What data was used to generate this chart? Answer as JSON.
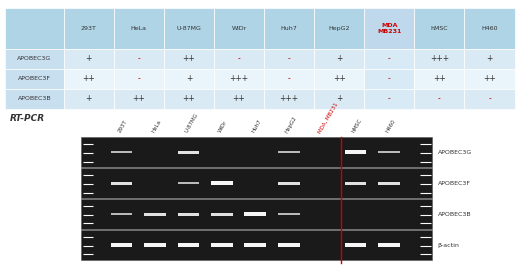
{
  "table_headers": [
    "",
    "293T",
    "HeLa",
    "U-87MG",
    "WiDr",
    "Huh7",
    "HepG2",
    "MDA\nMB231",
    "hMSC",
    "H460"
  ],
  "table_rows": [
    [
      "APOBEC3G",
      "+",
      "-",
      "++",
      "-",
      "-",
      "+",
      "-",
      "+++",
      "+"
    ],
    [
      "APOBEC3F",
      "++",
      "-",
      "+",
      "+++",
      "-",
      "++",
      "-",
      "++",
      "++"
    ],
    [
      "APOBEC3B",
      "+",
      "++",
      "++",
      "++",
      "+++",
      "+",
      "-",
      "-",
      "-"
    ]
  ],
  "mda_col_index": 7,
  "header_bg": "#aed4e6",
  "row_bg_even": "#daeaf4",
  "row_bg_odd": "#eaf4fb",
  "row_label_bg": "#c8dff0",
  "mda_header_bg": "#c0d8ec",
  "header_text_color": "#333333",
  "row_label_color": "#333333",
  "mda_col_text_color": "#cc0000",
  "minus_color": "#cc0000",
  "plus_color": "#333333",
  "gel_labels": [
    "293T",
    "HeLa",
    "U-87MG",
    "WiDr",
    "Huh7",
    "HepG2",
    "MDA, MB231",
    "hMSC",
    "H460"
  ],
  "gel_row_labels": [
    "APOBEC3G",
    "APOBEC3F",
    "APOBEC3B",
    "β-actin"
  ],
  "rt_pcr_label": "RT-PCR",
  "figure_bg": "#ffffff",
  "band_data": [
    [
      1,
      0,
      2,
      0,
      0,
      1,
      0,
      3,
      1
    ],
    [
      2,
      0,
      1,
      3,
      0,
      2,
      0,
      2,
      2
    ],
    [
      1,
      2,
      2,
      2,
      3,
      1,
      0,
      0,
      0
    ],
    [
      3,
      3,
      3,
      3,
      3,
      3,
      0,
      3,
      3
    ]
  ],
  "mda_lane": 6
}
